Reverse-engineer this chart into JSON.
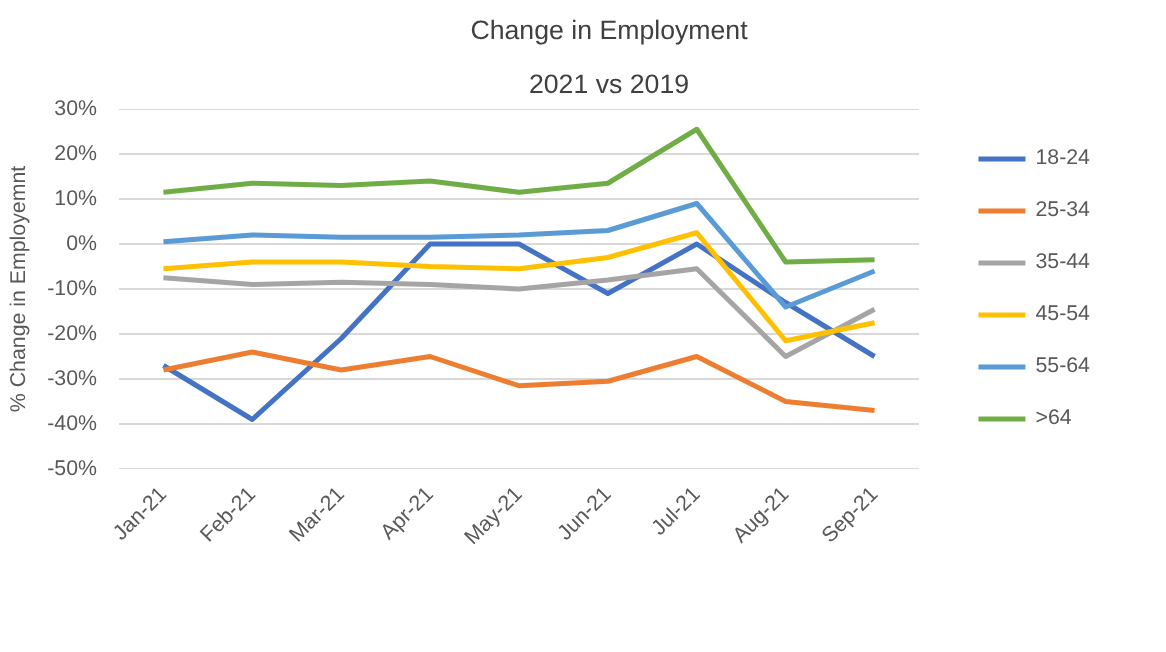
{
  "chart_data": {
    "type": "line",
    "title": "Change in Employment",
    "subtitle": "2021 vs 2019",
    "ylabel": "% Change in Employemnt",
    "categories": [
      "Jan-21",
      "Feb-21",
      "Mar-21",
      "Apr-21",
      "May-21",
      "Jun-21",
      "Jul-21",
      "Aug-21",
      "Sep-21"
    ],
    "ylim": [
      -50,
      30
    ],
    "yticks": [
      {
        "value": -50,
        "label": "-50%"
      },
      {
        "value": -40,
        "label": "-40%"
      },
      {
        "value": -30,
        "label": "-30%"
      },
      {
        "value": -20,
        "label": "-20%"
      },
      {
        "value": -10,
        "label": "-10%"
      },
      {
        "value": 0,
        "label": "0%"
      },
      {
        "value": 10,
        "label": "10%"
      },
      {
        "value": 20,
        "label": "20%"
      },
      {
        "value": 30,
        "label": "30%"
      }
    ],
    "grid": "y",
    "legend": "right",
    "marker": "none",
    "line_style": "solid",
    "series": [
      {
        "name": "18-24",
        "color": "#4472c4",
        "values": [
          -27,
          -39,
          -21,
          0,
          0,
          -11,
          0,
          -13,
          -25
        ]
      },
      {
        "name": "25-34",
        "color": "#ed7d31",
        "values": [
          -28,
          -24,
          -28,
          -25,
          -31.5,
          -30.5,
          -25,
          -35,
          -37
        ]
      },
      {
        "name": "35-44",
        "color": "#a5a5a5",
        "values": [
          -7.5,
          -9,
          -8.5,
          -9,
          -10,
          -8,
          -5.5,
          -25,
          -14.5
        ]
      },
      {
        "name": "45-54",
        "color": "#ffc000",
        "values": [
          -5.5,
          -4,
          -4,
          -5,
          -5.5,
          -3,
          2.5,
          -21.5,
          -17.5
        ]
      },
      {
        "name": "55-64",
        "color": "#5b9bd5",
        "values": [
          0.5,
          2,
          1.5,
          1.5,
          2,
          3,
          9,
          -14,
          -6
        ]
      },
      {
        "name": ">64",
        "color": "#70ad47",
        "values": [
          11.5,
          13.5,
          13,
          14,
          11.5,
          13.5,
          25.5,
          -4,
          -3.5
        ]
      }
    ]
  }
}
